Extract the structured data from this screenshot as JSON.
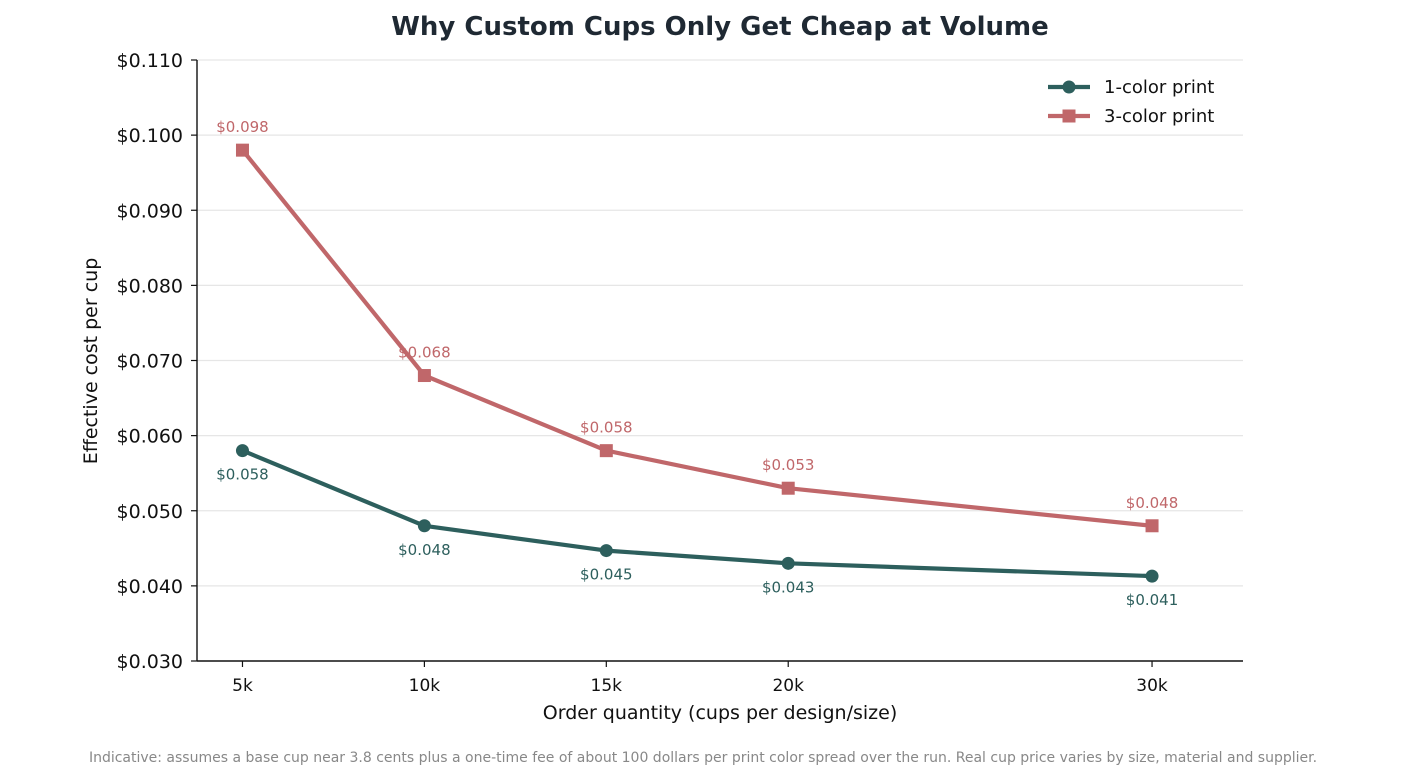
{
  "chart_data": {
    "type": "line",
    "title": "Why Custom Cups Only Get Cheap at Volume",
    "xlabel": "Order quantity (cups per design/size)",
    "ylabel": "Effective cost per cup",
    "x": [
      5000,
      10000,
      15000,
      20000,
      30000
    ],
    "x_tick_labels": [
      "5k",
      "10k",
      "15k",
      "20k",
      "30k"
    ],
    "ylim": [
      0.03,
      0.11
    ],
    "y_ticks": [
      0.03,
      0.04,
      0.05,
      0.06,
      0.07,
      0.08,
      0.09,
      0.1,
      0.11
    ],
    "y_tick_labels": [
      "$0.030",
      "$0.040",
      "$0.050",
      "$0.060",
      "$0.070",
      "$0.080",
      "$0.090",
      "$0.100",
      "$0.110"
    ],
    "grid": "horizontal",
    "legend_position": "top-right",
    "series": [
      {
        "name": "1-color print",
        "marker": "circle",
        "color": "#2d5f5d",
        "values": [
          0.058,
          0.048,
          0.0447,
          0.043,
          0.0413
        ],
        "labels": [
          "$0.058",
          "$0.048",
          "$0.045",
          "$0.043",
          "$0.041"
        ],
        "label_position": "below"
      },
      {
        "name": "3-color print",
        "marker": "square",
        "color": "#c0676a",
        "values": [
          0.098,
          0.068,
          0.058,
          0.053,
          0.048
        ],
        "labels": [
          "$0.098",
          "$0.068",
          "$0.058",
          "$0.053",
          "$0.048"
        ],
        "label_position": "above"
      }
    ],
    "footnote": "Indicative: assumes a base cup near 3.8 cents plus a one-time fee of about 100 dollars per print color spread over the run. Real cup price varies by size, material and supplier."
  }
}
